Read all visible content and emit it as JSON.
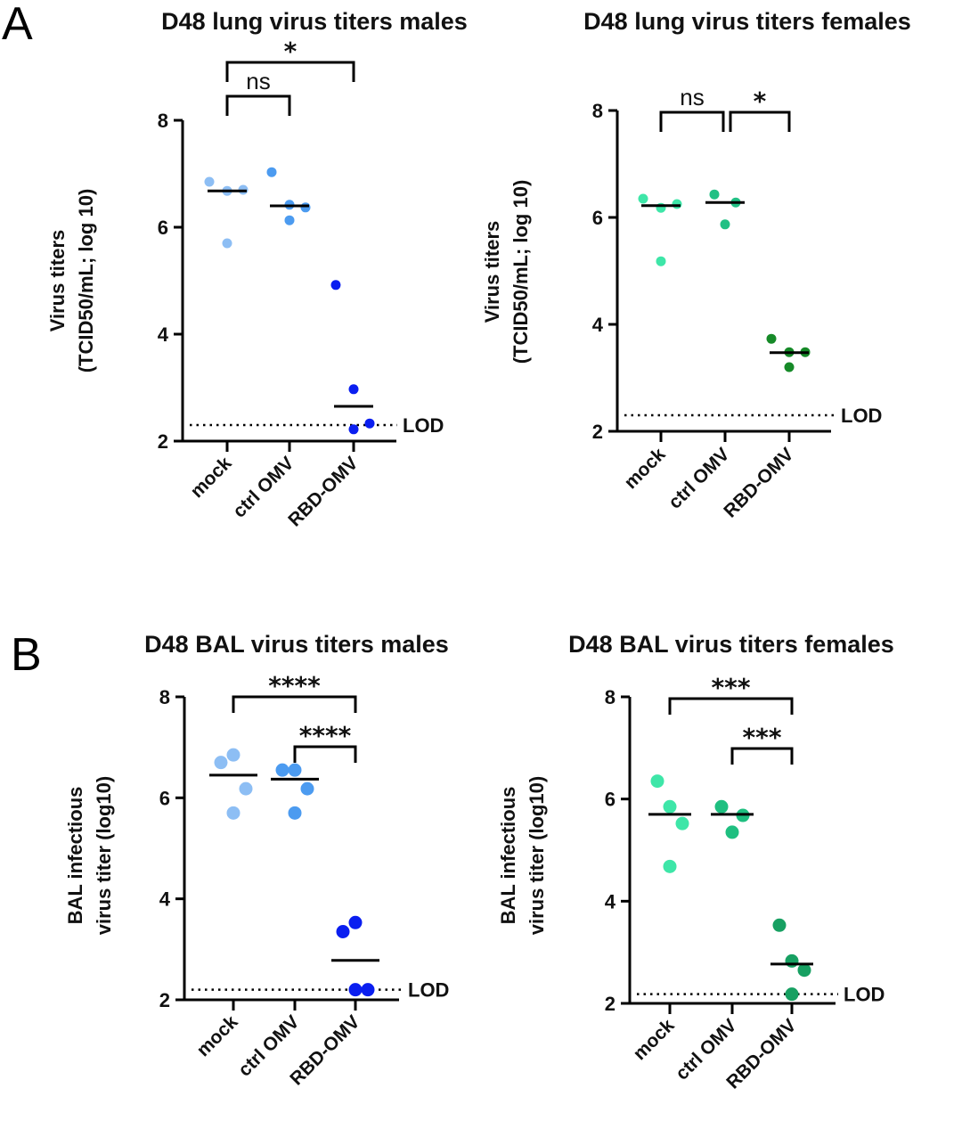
{
  "figure": {
    "panel_letters": [
      "A",
      "B"
    ]
  },
  "chart_data": [
    {
      "id": "A-males",
      "panel": "A",
      "type": "scatter",
      "title": "D48 lung virus titers males",
      "xlabel": "",
      "ylabel": [
        "Virus titers",
        "(TCID50/mL; log 10)"
      ],
      "ylim": [
        2,
        8
      ],
      "yticks": [
        "2",
        "4",
        "6",
        "8"
      ],
      "categories": [
        "mock",
        "ctrl OMV",
        "RBD-OMV"
      ],
      "colors": [
        "#8dbef4",
        "#4c9bf0",
        "#0a1ef0"
      ],
      "series": [
        {
          "name": "mock",
          "values": [
            6.85,
            6.68,
            6.7,
            5.7
          ],
          "median": 6.68
        },
        {
          "name": "ctrl OMV",
          "values": [
            7.03,
            6.42,
            6.37,
            6.13
          ],
          "median": 6.4
        },
        {
          "name": "RBD-OMV",
          "values": [
            4.92,
            2.97,
            2.33,
            2.22
          ],
          "median": 2.65
        }
      ],
      "lod": {
        "value": 2.3,
        "label": "LOD"
      },
      "comparisons": [
        {
          "from": "mock",
          "to": "ctrl OMV",
          "label": "ns",
          "level": 1
        },
        {
          "from": "mock",
          "to": "RBD-OMV",
          "label": "*",
          "level": 2
        }
      ],
      "grid": false,
      "legend": "none"
    },
    {
      "id": "A-females",
      "panel": "A",
      "type": "scatter",
      "title": "D48 lung virus titers females",
      "xlabel": "",
      "ylabel": [
        "Virus titers",
        "(TCID50/mL; log 10)"
      ],
      "ylim": [
        2,
        8
      ],
      "yticks": [
        "2",
        "4",
        "6",
        "8"
      ],
      "categories": [
        "mock",
        "ctrl OMV",
        "RBD-OMV"
      ],
      "colors": [
        "#3ee6a8",
        "#21c084",
        "#168a28"
      ],
      "series": [
        {
          "name": "mock",
          "values": [
            6.35,
            6.18,
            6.25,
            5.18
          ],
          "median": 6.22
        },
        {
          "name": "ctrl OMV",
          "values": [
            6.43,
            6.28,
            5.87
          ],
          "median": 6.28
        },
        {
          "name": "RBD-OMV",
          "values": [
            3.73,
            3.48,
            3.48,
            3.2
          ],
          "median": 3.47
        }
      ],
      "lod": {
        "value": 2.3,
        "label": "LOD"
      },
      "comparisons": [
        {
          "from": "mock",
          "to": "ctrl OMV",
          "label": "ns",
          "level": 1
        },
        {
          "from": "ctrl OMV",
          "to": "RBD-OMV",
          "label": "*",
          "level": 1
        }
      ],
      "grid": false,
      "legend": "none"
    },
    {
      "id": "B-males",
      "panel": "B",
      "type": "scatter",
      "title": "D48 BAL virus titers males",
      "xlabel": "",
      "ylabel": [
        "BAL infectious",
        "virus titer (log10)"
      ],
      "ylim": [
        2,
        8
      ],
      "yticks": [
        "2",
        "4",
        "6",
        "8"
      ],
      "categories": [
        "mock",
        "ctrl OMV",
        "RBD-OMV"
      ],
      "colors": [
        "#8dbef4",
        "#4c9bf0",
        "#0a1ef0"
      ],
      "series": [
        {
          "name": "mock",
          "values": [
            6.7,
            6.85,
            6.18,
            5.7
          ],
          "median": 6.45
        },
        {
          "name": "ctrl OMV",
          "values": [
            6.55,
            6.55,
            6.18,
            5.7
          ],
          "median": 6.37
        },
        {
          "name": "RBD-OMV",
          "values": [
            3.35,
            3.53,
            2.2,
            2.2
          ],
          "median": 2.78
        }
      ],
      "lod": {
        "value": 2.2,
        "label": "LOD"
      },
      "comparisons": [
        {
          "from": "ctrl OMV",
          "to": "RBD-OMV",
          "label": "****",
          "level": 1
        },
        {
          "from": "mock",
          "to": "RBD-OMV",
          "label": "****",
          "level": 2
        }
      ],
      "grid": false,
      "legend": "none"
    },
    {
      "id": "B-females",
      "panel": "B",
      "type": "scatter",
      "title": "D48 BAL virus titers females",
      "xlabel": "",
      "ylabel": [
        "BAL infectious",
        "virus titer (log10)"
      ],
      "ylim": [
        2,
        8
      ],
      "yticks": [
        "2",
        "4",
        "6",
        "8"
      ],
      "categories": [
        "mock",
        "ctrl OMV",
        "RBD-OMV"
      ],
      "colors": [
        "#3ee6a8",
        "#1fbf80",
        "#17a062"
      ],
      "series": [
        {
          "name": "mock",
          "values": [
            6.35,
            5.85,
            5.52,
            4.68
          ],
          "median": 5.7
        },
        {
          "name": "ctrl OMV",
          "values": [
            5.85,
            5.68,
            5.35
          ],
          "median": 5.7
        },
        {
          "name": "RBD-OMV",
          "values": [
            3.53,
            2.83,
            2.65,
            2.18
          ],
          "median": 2.77
        }
      ],
      "lod": {
        "value": 2.18,
        "label": "LOD"
      },
      "comparisons": [
        {
          "from": "ctrl OMV",
          "to": "RBD-OMV",
          "label": "***",
          "level": 1
        },
        {
          "from": "mock",
          "to": "RBD-OMV",
          "label": "***",
          "level": 2
        }
      ],
      "grid": false,
      "legend": "none"
    }
  ]
}
